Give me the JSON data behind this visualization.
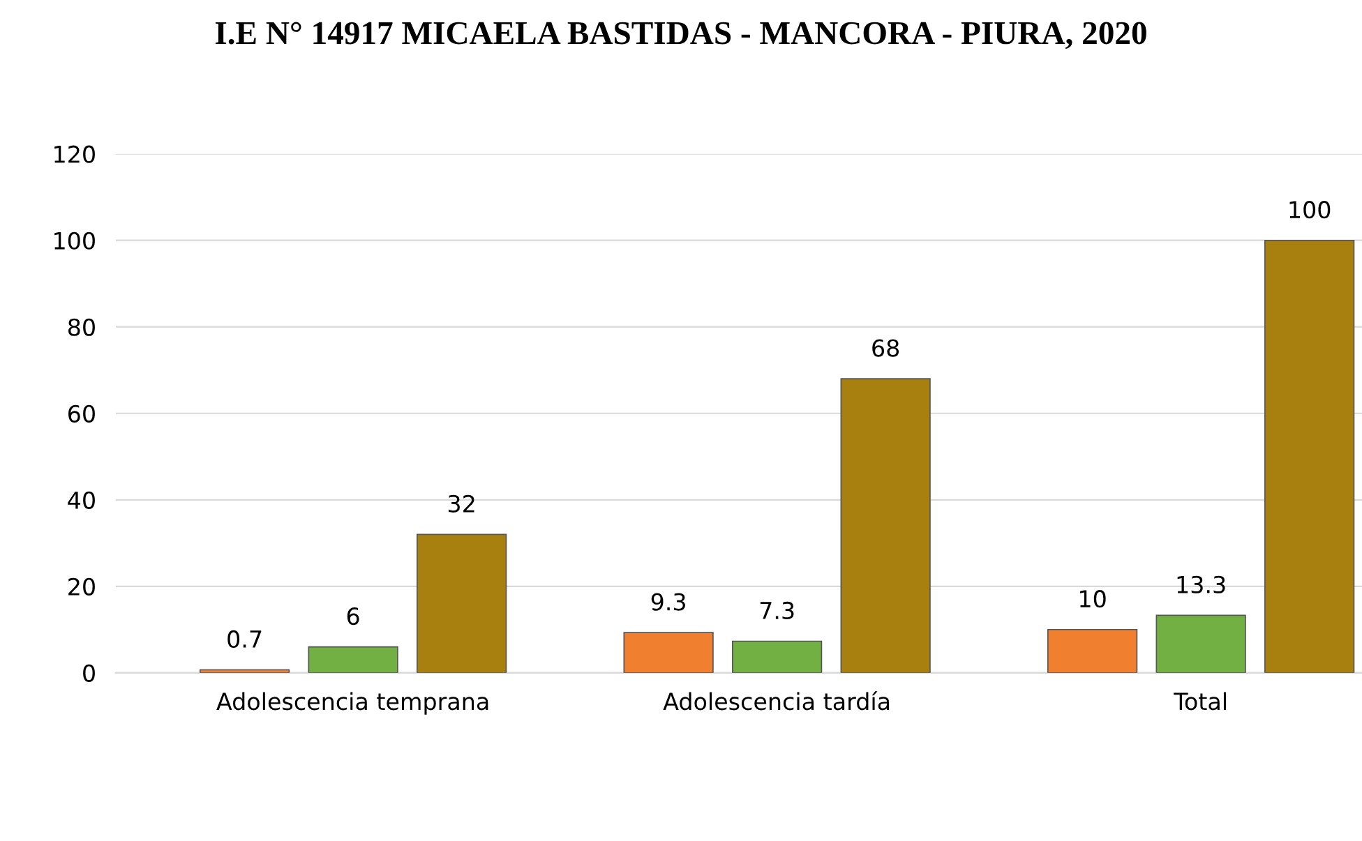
{
  "chart_data": {
    "type": "bar",
    "title": "I.E N° 14917 MICAELA BASTIDAS - MANCORA - PIURA, 2020",
    "categories": [
      "Adolescencia temprana",
      "Adolescencia tardía",
      "Total"
    ],
    "series": [
      {
        "color": "#f07f2f",
        "values": [
          0.7,
          9.3,
          10
        ]
      },
      {
        "color": "#72b043",
        "values": [
          6,
          7.3,
          13.3
        ]
      },
      {
        "color": "#a88010",
        "values": [
          32,
          68,
          100
        ]
      }
    ],
    "ylim": [
      0,
      120
    ],
    "yticks": [
      0,
      20,
      40,
      60,
      80,
      100,
      120
    ],
    "grid": "y",
    "data_labels": true,
    "legend": false
  }
}
